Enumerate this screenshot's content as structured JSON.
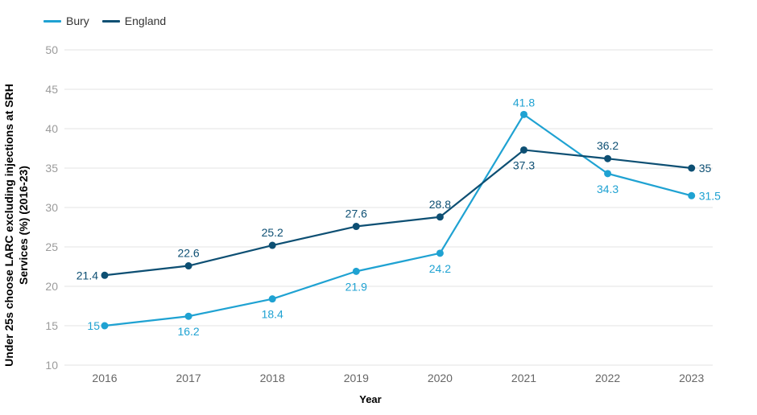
{
  "chart_data": {
    "type": "line",
    "title": "",
    "xlabel": "Year",
    "ylabel": "Under 25s choose LARC excluding injections at SRH Services (%) (2016-23)",
    "categories": [
      "2016",
      "2017",
      "2018",
      "2019",
      "2020",
      "2021",
      "2022",
      "2023"
    ],
    "ylim": [
      10,
      50
    ],
    "yticks": [
      "10",
      "15",
      "20",
      "25",
      "30",
      "35",
      "40",
      "45",
      "50"
    ],
    "grid": true,
    "legend_position": "top-left",
    "series": [
      {
        "name": "Bury",
        "color": "#1fa2d2",
        "values": [
          15,
          16.2,
          18.4,
          21.9,
          24.2,
          41.8,
          34.3,
          31.5
        ],
        "labels": [
          "15",
          "16.2",
          "18.4",
          "21.9",
          "24.2",
          "41.8",
          "34.3",
          "31.5"
        ]
      },
      {
        "name": "England",
        "color": "#0d4f73",
        "values": [
          21.4,
          22.6,
          25.2,
          27.6,
          28.8,
          37.3,
          36.2,
          35
        ],
        "labels": [
          "21.4",
          "22.6",
          "25.2",
          "27.6",
          "28.8",
          "37.3",
          "36.2",
          "35"
        ]
      }
    ]
  }
}
